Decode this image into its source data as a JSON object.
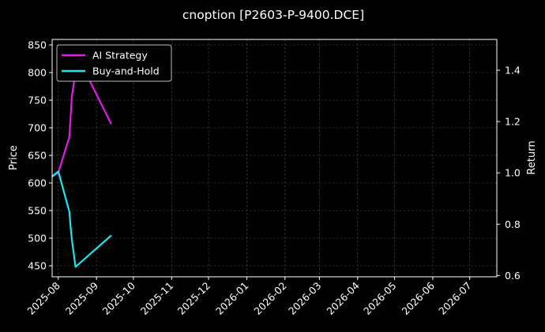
{
  "chart_data": {
    "type": "line",
    "title": "cnoption [P2603-P-9400.DCE]",
    "xlabel": "",
    "ylabel": "Price",
    "y2label": "Return",
    "x_ticks": [
      "2025-08",
      "2025-09",
      "2025-10",
      "2025-11",
      "2025-12",
      "2026-01",
      "2026-02",
      "2026-03",
      "2026-04",
      "2026-05",
      "2026-06",
      "2026-07"
    ],
    "xlim": [
      "2025-07-27",
      "2026-07-23"
    ],
    "ylim": [
      430,
      860
    ],
    "y_ticks": [
      450,
      500,
      550,
      600,
      650,
      700,
      750,
      800,
      850
    ],
    "y2lim": [
      0.595,
      1.52
    ],
    "y2_ticks": [
      "0.6",
      "0.8",
      "1.0",
      "1.2",
      "1.4"
    ],
    "grid": true,
    "legend_position": "top-left",
    "series": [
      {
        "name": "AI Strategy",
        "color": "#e619e6",
        "axis": "right",
        "x": [
          "2025-07-27",
          "2025-08-01",
          "2025-08-10",
          "2025-08-12",
          "2025-08-17",
          "2025-09-13"
        ],
        "values": [
          0.985,
          1.0,
          1.14,
          1.3,
          1.45,
          1.19
        ]
      },
      {
        "name": "Buy-and-Hold",
        "color": "#19e6f0",
        "axis": "left",
        "x": [
          "2025-07-27",
          "2025-08-01",
          "2025-08-10",
          "2025-08-11",
          "2025-08-12",
          "2025-08-15",
          "2025-09-13"
        ],
        "values": [
          612,
          621,
          548,
          520,
          497,
          448,
          505
        ]
      }
    ]
  }
}
